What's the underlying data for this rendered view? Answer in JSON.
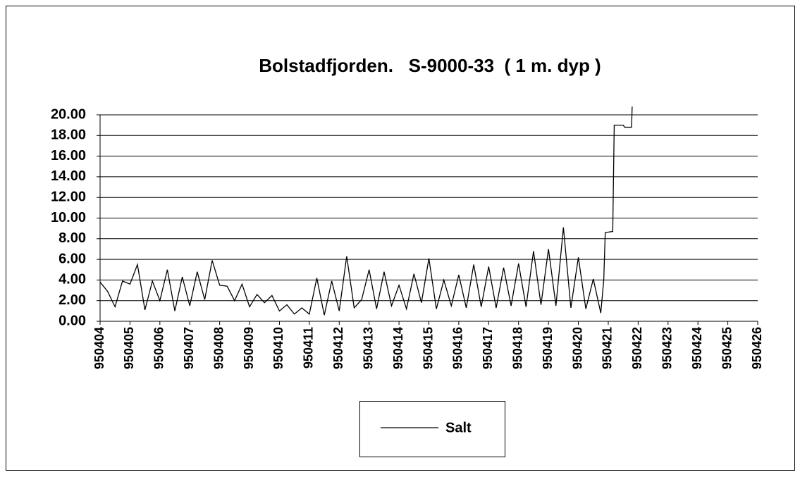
{
  "chart_data": {
    "type": "line",
    "title": "Bolstadfjorden.   S-9000-33  ( 1 m. dyp )",
    "x": [
      950404.0,
      950404.25,
      950404.5,
      950404.75,
      950405.0,
      950405.25,
      950405.5,
      950405.75,
      950406.0,
      950406.25,
      950406.5,
      950406.75,
      950407.0,
      950407.25,
      950407.5,
      950407.75,
      950408.0,
      950408.25,
      950408.5,
      950408.75,
      950409.0,
      950409.25,
      950409.5,
      950409.75,
      950410.0,
      950410.25,
      950410.5,
      950410.75,
      950411.0,
      950411.25,
      950411.5,
      950411.75,
      950412.0,
      950412.25,
      950412.5,
      950412.75,
      950413.0,
      950413.25,
      950413.5,
      950413.75,
      950414.0,
      950414.25,
      950414.5,
      950414.75,
      950415.0,
      950415.25,
      950415.5,
      950415.75,
      950416.0,
      950416.25,
      950416.5,
      950416.75,
      950417.0,
      950417.25,
      950417.5,
      950417.75,
      950418.0,
      950418.25,
      950418.5,
      950418.75,
      950419.0,
      950419.25,
      950419.5,
      950419.75,
      950420.0,
      950420.25,
      950420.5,
      950420.75,
      950420.85,
      950420.9,
      950421.15,
      950421.2,
      950421.5,
      950421.55,
      950421.78,
      950421.8
    ],
    "series": [
      {
        "name": "Salt",
        "color": "#000000",
        "values": [
          3.8,
          2.9,
          1.4,
          3.9,
          3.6,
          5.5,
          1.1,
          3.9,
          2.0,
          5.0,
          1.0,
          4.3,
          1.5,
          4.8,
          2.1,
          5.9,
          3.5,
          3.4,
          2.0,
          3.6,
          1.4,
          2.6,
          1.8,
          2.5,
          1.0,
          1.6,
          0.7,
          1.3,
          0.7,
          4.2,
          0.6,
          3.9,
          1.0,
          6.3,
          1.3,
          2.1,
          5.0,
          1.2,
          4.8,
          1.5,
          3.5,
          1.2,
          4.6,
          1.8,
          6.1,
          1.2,
          4.0,
          1.5,
          4.5,
          1.3,
          5.5,
          1.4,
          5.3,
          1.3,
          5.2,
          1.5,
          5.6,
          1.4,
          6.8,
          1.6,
          7.0,
          1.5,
          9.1,
          1.3,
          6.2,
          1.2,
          4.1,
          0.8,
          4.0,
          8.6,
          8.7,
          19.0,
          19.0,
          18.8,
          18.8,
          20.8
        ]
      }
    ],
    "xlim": [
      950404,
      950426
    ],
    "xticks": [
      950404,
      950405,
      950406,
      950407,
      950408,
      950409,
      950410,
      950411,
      950412,
      950413,
      950414,
      950415,
      950416,
      950417,
      950418,
      950419,
      950420,
      950421,
      950422,
      950423,
      950424,
      950425,
      950426
    ],
    "ylim": [
      0,
      20
    ],
    "yticks": [
      {
        "value": 0,
        "label": "0.00"
      },
      {
        "value": 2,
        "label": "2.00"
      },
      {
        "value": 4,
        "label": "4.00"
      },
      {
        "value": 6,
        "label": "6.00"
      },
      {
        "value": 8,
        "label": "8.00"
      },
      {
        "value": 10,
        "label": "10.00"
      },
      {
        "value": 12,
        "label": "12.00"
      },
      {
        "value": 14,
        "label": "14.00"
      },
      {
        "value": 16,
        "label": "16.00"
      },
      {
        "value": 18,
        "label": "18.00"
      },
      {
        "value": 20,
        "label": "20.00"
      }
    ],
    "grid": true,
    "legend": "bottom"
  }
}
